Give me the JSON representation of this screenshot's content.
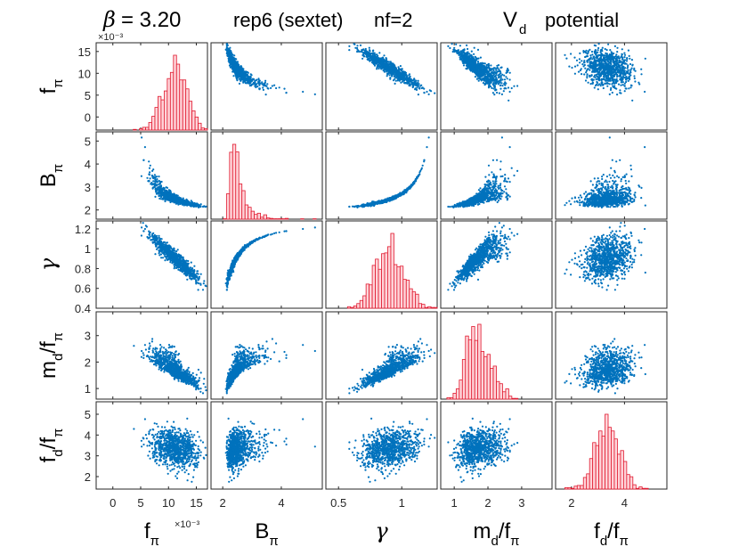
{
  "title": {
    "beta_symbol": "β",
    "beta_text": "= 3.20",
    "beta_exponent": "×10⁻³",
    "rep": "rep6 (sextet)",
    "nf": "nf=2",
    "potential_base": "V",
    "potential_sub": "d",
    "potential_word": "potential"
  },
  "colors": {
    "scatter": "#0072BD",
    "hist_fill": "#FFD4D9",
    "hist_edge": "#E0182E",
    "frame": "#262626",
    "axis_text": "#262626"
  },
  "chart_data": {
    "type": "scatter-matrix",
    "description_variables": [
      "f_pi",
      "B_pi",
      "gamma",
      "md_over_fpi",
      "fd_over_fpi"
    ],
    "variables": [
      {
        "key": "fpi",
        "base": "f",
        "sub": "π",
        "sup_sub": "",
        "range": [
          -3,
          17
        ],
        "ticks": [
          0,
          5,
          10,
          15
        ],
        "xticks": [
          0,
          5,
          10,
          15
        ],
        "exponent_label": "×10⁻³",
        "mean": 11.2,
        "sd": 2.1
      },
      {
        "key": "Bpi",
        "base": "B",
        "sub": "π",
        "sup_sub": "",
        "range": [
          1.6,
          5.4
        ],
        "ticks": [
          2,
          3,
          4,
          5
        ],
        "xticks": [
          2,
          4
        ],
        "mean": 2.65,
        "sd": 0.35
      },
      {
        "key": "gamma",
        "base": "γ",
        "sub": "",
        "sup_sub": "",
        "range": [
          0.4,
          1.28
        ],
        "ticks": [
          0.4,
          0.6,
          0.8,
          1.0,
          1.2
        ],
        "xticks": [
          0.5,
          1
        ],
        "mean": 0.88,
        "sd": 0.12
      },
      {
        "key": "md",
        "base": "m",
        "sub": "d",
        "sup_sub": "/f",
        "sub2": "π",
        "range": [
          0.6,
          3.9
        ],
        "ticks": [
          1,
          2,
          3
        ],
        "xticks": [
          1,
          2,
          3
        ],
        "mean": 1.55,
        "sd": 0.35
      },
      {
        "key": "fd",
        "base": "f",
        "sub": "d",
        "sup_sub": "/f",
        "sub2": "π",
        "range": [
          1.4,
          5.6
        ],
        "ticks": [
          2,
          3,
          4,
          5
        ],
        "xticks": [
          2,
          4
        ],
        "mean": 3.35,
        "sd": 0.45
      }
    ],
    "y_tick_labels": [
      [
        "0",
        "5",
        "10",
        "15"
      ],
      [
        "2",
        "3",
        "4",
        "5"
      ],
      [
        "0.4",
        "0.6",
        "0.8",
        "1",
        "1.2"
      ],
      [
        "1",
        "2",
        "3"
      ],
      [
        "2",
        "3",
        "4",
        "5"
      ]
    ],
    "x_tick_labels": [
      [
        "0",
        "5",
        "10",
        "15"
      ],
      [
        "2",
        "4"
      ],
      [
        "0.5",
        "1"
      ],
      [
        "1",
        "2",
        "3"
      ],
      [
        "2",
        "4"
      ]
    ],
    "diagonal": "histogram",
    "off_diagonal": "scatter",
    "sample_count_drawn": 900
  }
}
